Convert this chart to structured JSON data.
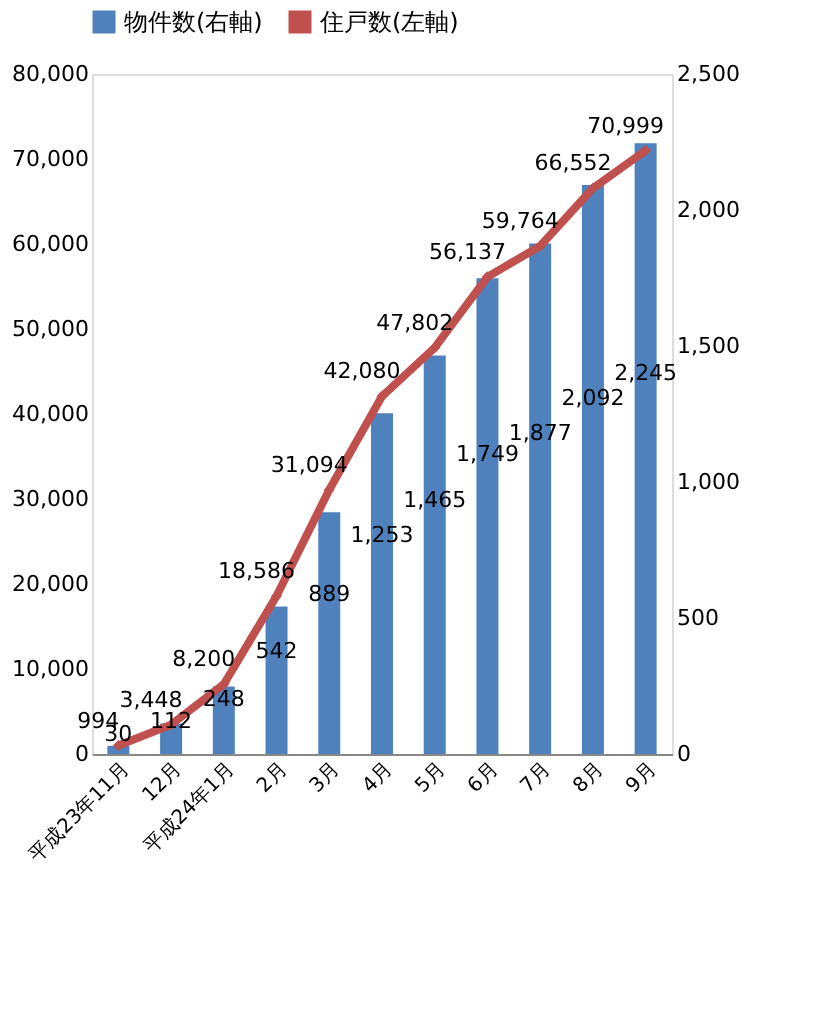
{
  "chart_data": {
    "type": "bar",
    "categories": [
      "平成23年11月",
      "12月",
      "平成24年1月",
      "2月",
      "3月",
      "4月",
      "5月",
      "6月",
      "7月",
      "8月",
      "9月"
    ],
    "series": [
      {
        "name": "物件数(右軸)",
        "axis": "y2",
        "color": "#4f81bd",
        "values": [
          30,
          112,
          248,
          542,
          889,
          1253,
          1465,
          1749,
          1877,
          2092,
          2245
        ],
        "value_labels": [
          "30",
          "112",
          "248",
          "542",
          "889",
          "1,253",
          "1,465",
          "1,749",
          "1,877",
          "2,092",
          "2,245"
        ]
      },
      {
        "name": "住戸数(左軸)",
        "type": "line",
        "color": "#c0504d",
        "values": [
          994,
          3448,
          8200,
          18586,
          31094,
          42080,
          47802,
          56137,
          59764,
          66552,
          70999
        ],
        "value_labels": [
          "994",
          "3,448",
          "8,200",
          "18,586",
          "31,094",
          "42,080",
          "47,802",
          "56,137",
          "59,764",
          "66,552",
          "70,999"
        ]
      }
    ],
    "ylim": [
      0,
      80000
    ],
    "yticks": [
      0,
      {
        "value": 10000,
        "label": "10,000"
      },
      {
        "value": 20000,
        "label": "20,000"
      },
      {
        "value": 30000,
        "label": "30,000"
      },
      {
        "value": 40000,
        "label": "40,000"
      },
      {
        "value": 50000,
        "label": "50,000"
      },
      {
        "value": 60000,
        "label": "60,000"
      },
      {
        "value": 70000,
        "label": "70,000"
      },
      {
        "value": 80000,
        "label": "80,000"
      }
    ],
    "y2lim": [
      0,
      2500
    ],
    "y2ticks": [
      0,
      500,
      {
        "value": 1000,
        "label": "1,000"
      },
      {
        "value": 1500,
        "label": "1,500"
      },
      {
        "value": 2000,
        "label": "2,000"
      },
      {
        "value": 2500,
        "label": "2,500"
      }
    ],
    "legend": "top",
    "grid": false,
    "marker": "diamond",
    "line_style": "solid"
  }
}
